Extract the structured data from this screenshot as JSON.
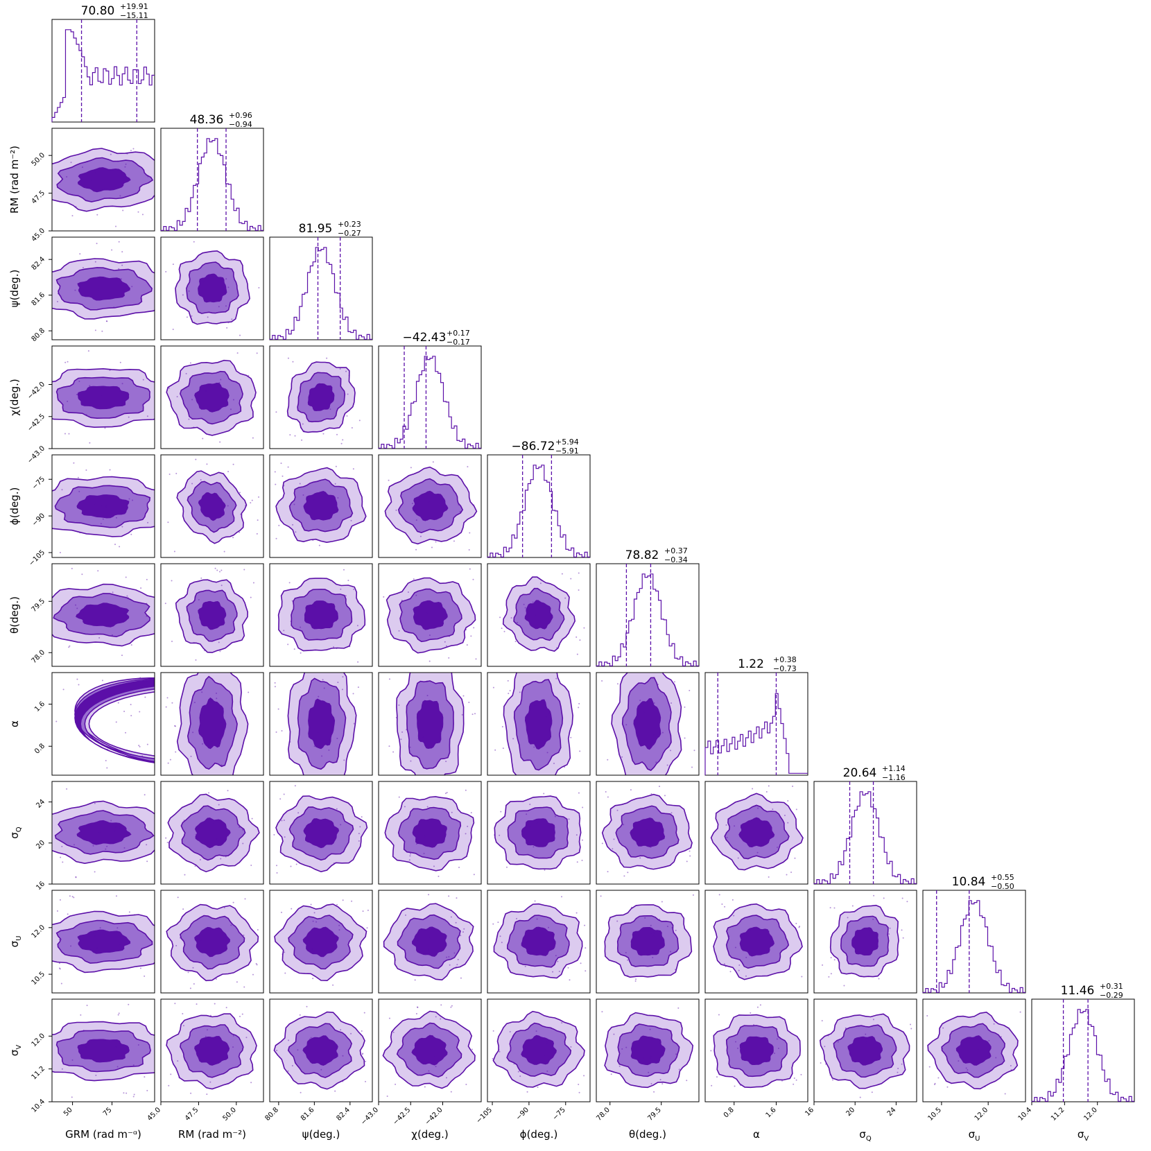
{
  "chart_data": {
    "type": "corner",
    "color": "#5b0fa8",
    "fill_colors": [
      "#5b0fa8",
      "#9a6fd1",
      "#dccbef"
    ],
    "params": [
      {
        "key": "GRM",
        "label": "GRM (rad m⁻ᵅ)",
        "ticks": [
          "50",
          "75"
        ],
        "tick_values": [
          50,
          75
        ],
        "range": [
          37,
          102
        ],
        "median": "70.80",
        "plus": "+19.91",
        "minus": "−15.11"
      },
      {
        "key": "RM",
        "label": "RM (rad m⁻²)",
        "ticks": [
          "45.0",
          "47.5",
          "50.0"
        ],
        "tick_values": [
          45.0,
          47.5,
          50.0
        ],
        "range": [
          45.0,
          51.8
        ],
        "median": "48.36",
        "plus": "+0.96",
        "minus": "−0.94"
      },
      {
        "key": "psi",
        "label": "ψ(deg.)",
        "ticks": [
          "80.8",
          "81.6",
          "82.4"
        ],
        "tick_values": [
          80.8,
          81.6,
          82.4
        ],
        "range": [
          80.6,
          82.9
        ],
        "median": "81.95",
        "plus": "+0.23",
        "minus": "−0.27"
      },
      {
        "key": "chi",
        "label": "χ(deg.)",
        "ticks": [
          "−43.0",
          "−42.5",
          "−42.0"
        ],
        "tick_values": [
          -43.0,
          -42.5,
          -42.0
        ],
        "range": [
          -43.0,
          -41.4
        ],
        "median": "−42.43",
        "plus": "+0.17",
        "minus": "−0.17"
      },
      {
        "key": "phi",
        "label": "ϕ(deg.)",
        "ticks": [
          "−105",
          "−90",
          "−75"
        ],
        "tick_values": [
          -105,
          -90,
          -75
        ],
        "range": [
          -107,
          -65
        ],
        "median": "−86.72",
        "plus": "+5.94",
        "minus": "−5.91"
      },
      {
        "key": "theta",
        "label": "θ(deg.)",
        "ticks": [
          "78.0",
          "79.5"
        ],
        "tick_values": [
          78.0,
          79.5
        ],
        "range": [
          77.6,
          80.6
        ],
        "median": "78.82",
        "plus": "+0.37",
        "minus": "−0.34"
      },
      {
        "key": "alpha",
        "label": "α",
        "ticks": [
          "0.8",
          "1.6"
        ],
        "tick_values": [
          0.8,
          1.6
        ],
        "range": [
          0.25,
          2.2
        ],
        "median": "1.22",
        "plus": "+0.38",
        "minus": "−0.73"
      },
      {
        "key": "sigQ",
        "label": "σQ",
        "label_main": "σ",
        "label_sub": "Q",
        "ticks": [
          "16",
          "20",
          "24"
        ],
        "tick_values": [
          16,
          20,
          24
        ],
        "range": [
          16,
          26
        ],
        "median": "20.64",
        "plus": "+1.14",
        "minus": "−1.16"
      },
      {
        "key": "sigU",
        "label": "σU",
        "label_main": "σ",
        "label_sub": "U",
        "ticks": [
          "10.5",
          "12.0"
        ],
        "tick_values": [
          10.5,
          12.0
        ],
        "range": [
          9.9,
          13.2
        ],
        "median": "10.84",
        "plus": "+0.55",
        "minus": "−0.50"
      },
      {
        "key": "sigV",
        "label": "σV",
        "label_main": "σ",
        "label_sub": "V",
        "ticks": [
          "10.4",
          "11.2",
          "12.0"
        ],
        "tick_values": [
          10.4,
          11.2,
          12.0
        ],
        "range": [
          10.4,
          12.9
        ],
        "median": "11.46",
        "plus": "+0.31",
        "minus": "−0.29"
      }
    ],
    "correlations": {
      "1,0": 0.05,
      "2,1": -0.45,
      "3,2": -0.75,
      "4,1": 0.85,
      "5,1": 0.6,
      "5,4": 0.65,
      "8,7": -0.65
    }
  }
}
